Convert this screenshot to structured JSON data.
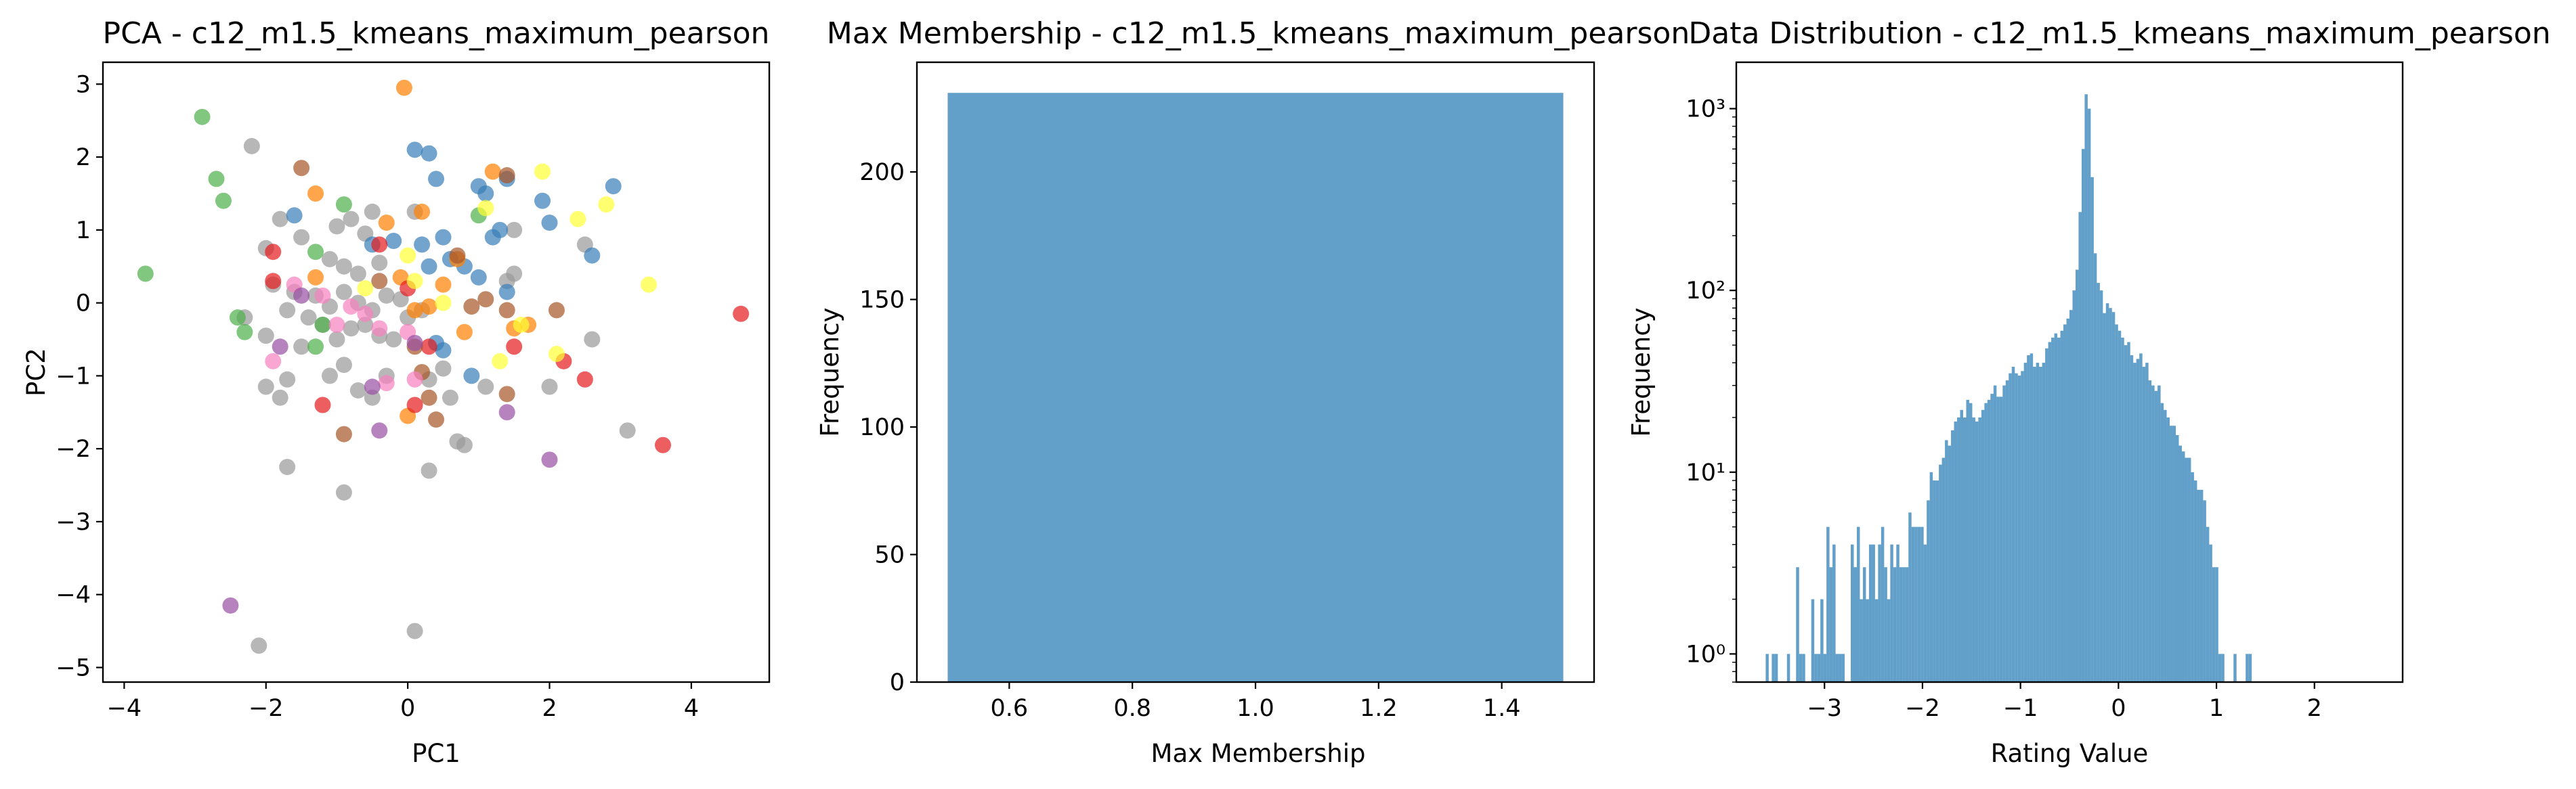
{
  "chart_data": [
    {
      "type": "scatter",
      "title": "PCA - c12_m1.5_kmeans_maximum_pearson",
      "xlabel": "PC1",
      "ylabel": "PC2",
      "xlim": [
        -4.3,
        5.1
      ],
      "ylim": [
        -5.2,
        3.3
      ],
      "xticks": [
        -4,
        -2,
        0,
        2,
        4
      ],
      "xtick_labels": [
        "−4",
        "−2",
        "0",
        "2",
        "4"
      ],
      "yticks": [
        -5,
        -4,
        -3,
        -2,
        -1,
        0,
        1,
        2,
        3
      ],
      "ytick_labels": [
        "−5",
        "−4",
        "−3",
        "−2",
        "−1",
        "0",
        "1",
        "2",
        "3"
      ],
      "marker_alpha": 0.7,
      "series": [
        {
          "color": "#999999",
          "points": [
            [
              -2.2,
              2.15
            ],
            [
              -1.8,
              1.15
            ],
            [
              -2.0,
              0.75
            ],
            [
              -1.5,
              0.9
            ],
            [
              -1.0,
              1.05
            ],
            [
              -0.8,
              1.15
            ],
            [
              -0.6,
              0.95
            ],
            [
              -0.5,
              1.25
            ],
            [
              0.1,
              1.25
            ],
            [
              -1.1,
              0.6
            ],
            [
              -0.9,
              0.5
            ],
            [
              -0.7,
              0.4
            ],
            [
              -0.4,
              0.55
            ],
            [
              -1.9,
              0.25
            ],
            [
              -1.6,
              0.15
            ],
            [
              -1.3,
              0.1
            ],
            [
              -1.1,
              -0.05
            ],
            [
              -0.9,
              0.15
            ],
            [
              -0.7,
              0.0
            ],
            [
              -0.5,
              -0.1
            ],
            [
              -0.3,
              0.1
            ],
            [
              -0.1,
              0.05
            ],
            [
              -1.7,
              -0.1
            ],
            [
              -1.4,
              -0.2
            ],
            [
              -1.2,
              -0.3
            ],
            [
              -1.0,
              -0.5
            ],
            [
              -0.8,
              -0.35
            ],
            [
              -0.6,
              -0.3
            ],
            [
              -0.4,
              -0.45
            ],
            [
              -0.2,
              -0.5
            ],
            [
              0.0,
              -0.2
            ],
            [
              0.2,
              -0.1
            ],
            [
              -2.3,
              -0.2
            ],
            [
              -2.0,
              -0.45
            ],
            [
              -1.5,
              -0.6
            ],
            [
              -1.1,
              -1.0
            ],
            [
              -0.9,
              -0.85
            ],
            [
              -0.7,
              -1.2
            ],
            [
              -0.3,
              -1.0
            ],
            [
              -1.7,
              -1.05
            ],
            [
              -2.0,
              -1.15
            ],
            [
              -1.8,
              -1.3
            ],
            [
              -0.5,
              -1.3
            ],
            [
              0.3,
              -1.05
            ],
            [
              0.5,
              -0.9
            ],
            [
              1.1,
              -1.15
            ],
            [
              0.6,
              -1.3
            ],
            [
              0.7,
              -1.9
            ],
            [
              0.8,
              -1.95
            ],
            [
              -1.7,
              -2.25
            ],
            [
              -0.9,
              -2.6
            ],
            [
              0.3,
              -2.3
            ],
            [
              -2.1,
              -4.7
            ],
            [
              0.1,
              -4.5
            ],
            [
              1.4,
              0.3
            ],
            [
              1.5,
              0.4
            ],
            [
              2.5,
              0.8
            ],
            [
              2.6,
              -0.5
            ],
            [
              2.0,
              -1.15
            ],
            [
              3.1,
              -1.75
            ],
            [
              1.5,
              1.0
            ]
          ]
        },
        {
          "color": "#377eb8",
          "points": [
            [
              0.1,
              2.1
            ],
            [
              0.3,
              2.05
            ],
            [
              0.4,
              1.7
            ],
            [
              1.0,
              1.6
            ],
            [
              1.1,
              1.5
            ],
            [
              1.4,
              1.7
            ],
            [
              1.9,
              1.4
            ],
            [
              2.0,
              1.1
            ],
            [
              2.9,
              1.6
            ],
            [
              2.6,
              0.65
            ],
            [
              0.2,
              0.8
            ],
            [
              0.5,
              0.9
            ],
            [
              0.6,
              0.6
            ],
            [
              0.8,
              0.5
            ],
            [
              1.0,
              0.35
            ],
            [
              1.2,
              0.9
            ],
            [
              1.3,
              1.0
            ],
            [
              1.4,
              0.15
            ],
            [
              0.4,
              -0.55
            ],
            [
              0.5,
              -0.65
            ],
            [
              0.9,
              -1.0
            ],
            [
              -1.6,
              1.2
            ],
            [
              -0.5,
              0.8
            ],
            [
              -0.2,
              0.85
            ],
            [
              0.3,
              0.5
            ]
          ]
        },
        {
          "color": "#4daf4a",
          "points": [
            [
              -2.9,
              2.55
            ],
            [
              -2.7,
              1.7
            ],
            [
              -2.6,
              1.4
            ],
            [
              -3.7,
              0.4
            ],
            [
              -2.4,
              -0.2
            ],
            [
              -2.3,
              -0.4
            ],
            [
              -1.3,
              0.7
            ],
            [
              -0.9,
              1.35
            ],
            [
              -1.3,
              -0.6
            ],
            [
              -1.2,
              -0.3
            ],
            [
              1.0,
              1.2
            ]
          ]
        },
        {
          "color": "#ff7f00",
          "points": [
            [
              -0.05,
              2.95
            ],
            [
              -1.3,
              1.5
            ],
            [
              -0.3,
              1.1
            ],
            [
              0.2,
              1.25
            ],
            [
              1.2,
              1.8
            ],
            [
              0.7,
              0.6
            ],
            [
              0.5,
              0.25
            ],
            [
              0.3,
              -0.05
            ],
            [
              0.1,
              -0.1
            ],
            [
              0.8,
              -0.4
            ],
            [
              1.5,
              -0.35
            ],
            [
              1.7,
              -0.3
            ],
            [
              -1.3,
              0.35
            ],
            [
              -0.1,
              0.35
            ],
            [
              0.0,
              -1.55
            ]
          ]
        },
        {
          "color": "#e41a1c",
          "points": [
            [
              -1.9,
              0.7
            ],
            [
              -1.9,
              0.3
            ],
            [
              -1.2,
              -1.4
            ],
            [
              -0.4,
              0.8
            ],
            [
              0.0,
              0.2
            ],
            [
              0.3,
              -0.6
            ],
            [
              0.1,
              -1.4
            ],
            [
              1.5,
              -0.6
            ],
            [
              2.2,
              -0.8
            ],
            [
              2.5,
              -1.05
            ],
            [
              3.6,
              -1.95
            ],
            [
              4.7,
              -0.15
            ]
          ]
        },
        {
          "color": "#a65628",
          "points": [
            [
              -1.5,
              1.85
            ],
            [
              1.4,
              1.75
            ],
            [
              0.7,
              0.65
            ],
            [
              1.1,
              0.05
            ],
            [
              1.4,
              -0.1
            ],
            [
              2.1,
              -0.1
            ],
            [
              0.1,
              -0.6
            ],
            [
              0.2,
              -0.95
            ],
            [
              0.3,
              -1.3
            ],
            [
              0.4,
              -1.6
            ],
            [
              1.4,
              -1.25
            ],
            [
              -0.9,
              -1.8
            ],
            [
              -0.4,
              0.3
            ],
            [
              0.9,
              -0.05
            ]
          ]
        },
        {
          "color": "#ffff33",
          "points": [
            [
              1.9,
              1.8
            ],
            [
              2.4,
              1.15
            ],
            [
              2.8,
              1.35
            ],
            [
              1.1,
              1.3
            ],
            [
              3.4,
              0.25
            ],
            [
              2.1,
              -0.7
            ],
            [
              0.0,
              0.65
            ],
            [
              -0.6,
              0.2
            ],
            [
              0.5,
              0.0
            ],
            [
              1.3,
              -0.8
            ],
            [
              1.6,
              -0.3
            ],
            [
              0.1,
              0.3
            ]
          ]
        },
        {
          "color": "#f781bf",
          "points": [
            [
              -1.9,
              -0.8
            ],
            [
              -1.6,
              0.25
            ],
            [
              -1.2,
              0.1
            ],
            [
              -0.8,
              -0.05
            ],
            [
              -0.4,
              -0.35
            ],
            [
              -0.3,
              -1.1
            ],
            [
              0.0,
              -0.4
            ],
            [
              -0.6,
              -0.15
            ],
            [
              -1.0,
              -0.3
            ],
            [
              0.1,
              -1.05
            ]
          ]
        },
        {
          "color": "#984ea3",
          "points": [
            [
              -1.8,
              -0.6
            ],
            [
              -1.5,
              0.1
            ],
            [
              -0.5,
              -1.15
            ],
            [
              -0.4,
              -1.75
            ],
            [
              -2.5,
              -4.15
            ],
            [
              1.4,
              -1.5
            ],
            [
              2.0,
              -2.15
            ],
            [
              0.1,
              -0.55
            ]
          ]
        }
      ]
    },
    {
      "type": "bar",
      "title": "Max Membership - c12_m1.5_kmeans_maximum_pearson",
      "xlabel": "Max Membership",
      "ylabel": "Frequency",
      "xlim": [
        0.45,
        1.55
      ],
      "ylim": [
        0,
        243
      ],
      "xticks": [
        0.6,
        0.8,
        1.0,
        1.2,
        1.4
      ],
      "xtick_labels": [
        "0.6",
        "0.8",
        "1.0",
        "1.2",
        "1.4"
      ],
      "yticks": [
        0,
        50,
        100,
        150,
        200
      ],
      "ytick_labels": [
        "0",
        "50",
        "100",
        "150",
        "200"
      ],
      "bars": [
        {
          "x_start": 0.5,
          "x_end": 1.5,
          "value": 231
        }
      ],
      "color": "#1f77b4",
      "alpha": 0.7
    },
    {
      "type": "bar",
      "title": "Data Distribution - c12_m1.5_kmeans_maximum_pearson",
      "xlabel": "Rating Value",
      "ylabel": "Frequency",
      "yscale": "log",
      "xlim": [
        -3.9,
        2.9
      ],
      "ylim": [
        0.7,
        1800
      ],
      "xticks": [
        -3,
        -2,
        -1,
        0,
        1,
        2
      ],
      "xtick_labels": [
        "−3",
        "−2",
        "−1",
        "0",
        "1",
        "2"
      ],
      "yticks": [
        1,
        10,
        100,
        1000
      ],
      "ytick_labels": [
        "10⁰",
        "10¹",
        "10²",
        "10³"
      ],
      "bin_start": -3.6,
      "bin_width": 0.031,
      "values": [
        1,
        0,
        1,
        1,
        0,
        0,
        0,
        1,
        0,
        0,
        3,
        1,
        1,
        0,
        0,
        2,
        1,
        1,
        2,
        1,
        5,
        3,
        4,
        1,
        1,
        1,
        0,
        0,
        4,
        3,
        5,
        2,
        3,
        2,
        4,
        4,
        2,
        4,
        5,
        3,
        2,
        4,
        3,
        4,
        3,
        3,
        3,
        6,
        5,
        5,
        5,
        5,
        4,
        7,
        10,
        9,
        9,
        11,
        12,
        15,
        14,
        17,
        19,
        20,
        22,
        20,
        25,
        24,
        20,
        19,
        20,
        22,
        24,
        25,
        27,
        30,
        26,
        26,
        30,
        32,
        35,
        38,
        35,
        34,
        36,
        40,
        44,
        45,
        38,
        40,
        38,
        40,
        48,
        52,
        55,
        58,
        55,
        60,
        65,
        70,
        78,
        100,
        130,
        270,
        600,
        1200,
        1000,
        420,
        160,
        110,
        100,
        75,
        85,
        80,
        76,
        65,
        60,
        55,
        50,
        52,
        44,
        40,
        42,
        45,
        38,
        40,
        32,
        30,
        28,
        30,
        24,
        22,
        20,
        18,
        18,
        16,
        14,
        13,
        12,
        12,
        10,
        9,
        8,
        8,
        7,
        5,
        4,
        3,
        3,
        1,
        1,
        0,
        0,
        0,
        1,
        0,
        0,
        0,
        1,
        1
      ],
      "color": "#1f77b4",
      "alpha": 0.7
    }
  ]
}
